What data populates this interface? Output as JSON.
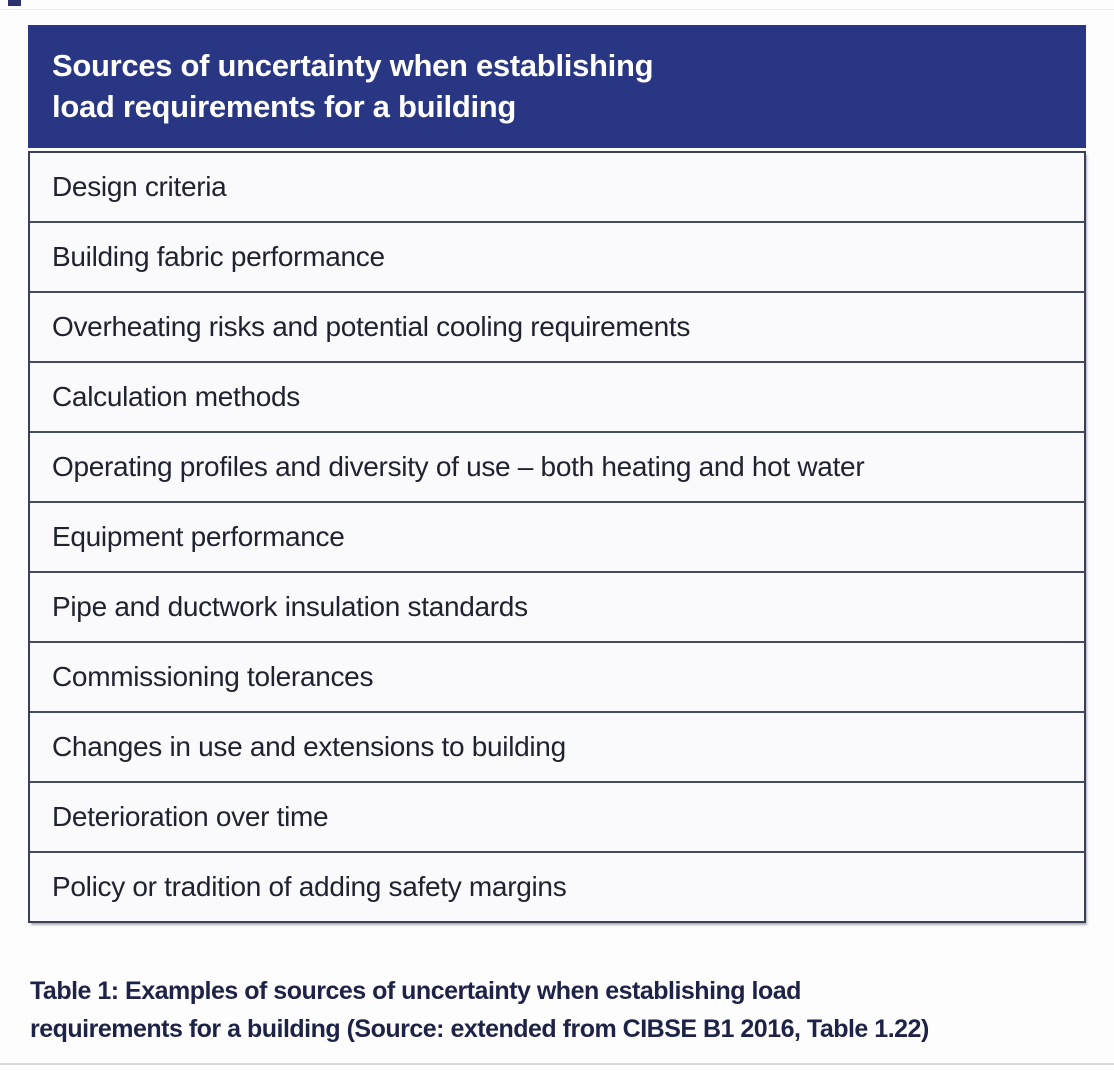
{
  "table": {
    "header": {
      "title_lines": [
        "Sources of uncertainty when establishing",
        "load requirements for a building"
      ]
    },
    "rows": [
      "Design criteria",
      "Building fabric performance",
      "Overheating risks and potential cooling requirements",
      "Calculation methods",
      "Operating profiles and diversity of use – both heating and hot water",
      "Equipment performance",
      "Pipe and ductwork insulation standards",
      "Commissioning tolerances",
      "Changes in use and extensions to building",
      "Deterioration over time",
      "Policy or tradition of adding safety margins"
    ]
  },
  "caption": {
    "lines": [
      "Table 1: Examples of sources of uncertainty when establishing load",
      "requirements for a building (Source: extended from CIBSE B1 2016, Table 1.22)"
    ]
  },
  "colors": {
    "header_bg": "#283683",
    "header_text": "#ffffff",
    "row_bg": "#fafafc",
    "row_text": "#20222f",
    "border": "#3b4059",
    "row_divider": "#454b60",
    "caption_text": "#1e2247"
  }
}
